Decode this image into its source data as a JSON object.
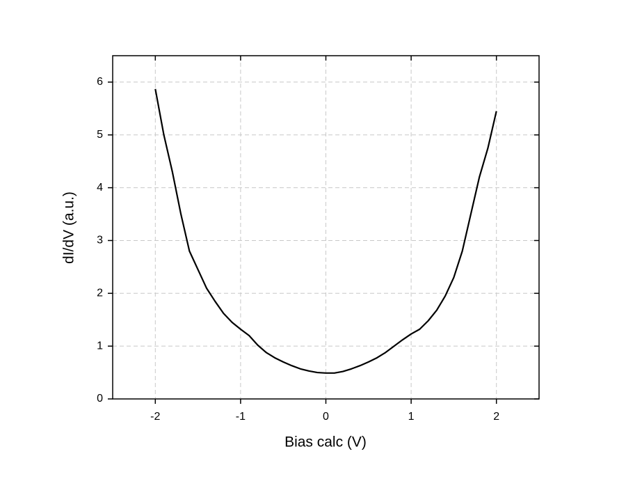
{
  "chart_data": {
    "type": "line",
    "x_label": "Bias calc (V)",
    "y_label": "dI/dV (a.u.)",
    "x": [
      -2.0,
      -1.9,
      -1.8,
      -1.7,
      -1.6,
      -1.5,
      -1.4,
      -1.3,
      -1.2,
      -1.1,
      -1.0,
      -0.9,
      -0.8,
      -0.7,
      -0.6,
      -0.5,
      -0.4,
      -0.3,
      -0.2,
      -0.1,
      0,
      0.1,
      0.2,
      0.3,
      0.4,
      0.5,
      0.6,
      0.7,
      0.8,
      0.9,
      1.0,
      1.1,
      1.2,
      1.3,
      1.4,
      1.5,
      1.6,
      1.7,
      1.8,
      1.9,
      2.0
    ],
    "series": [
      {
        "color": "#000000",
        "values": [
          5.87,
          5.0,
          4.3,
          3.5,
          2.8,
          2.45,
          2.1,
          1.85,
          1.62,
          1.45,
          1.32,
          1.2,
          1.02,
          0.88,
          0.78,
          0.7,
          0.63,
          0.57,
          0.53,
          0.5,
          0.49,
          0.49,
          0.52,
          0.57,
          0.63,
          0.7,
          0.78,
          0.88,
          1.0,
          1.12,
          1.23,
          1.32,
          1.48,
          1.68,
          1.95,
          2.3,
          2.8,
          3.5,
          4.2,
          4.75,
          5.45
        ]
      }
    ],
    "xlim": [
      -2.5,
      2.5
    ],
    "xticks": [
      -2,
      -1,
      0,
      1,
      2
    ],
    "ylim": [
      0,
      6.5
    ],
    "yticks": [
      0,
      1,
      2,
      3,
      4,
      5,
      6
    ],
    "grid": true
  }
}
